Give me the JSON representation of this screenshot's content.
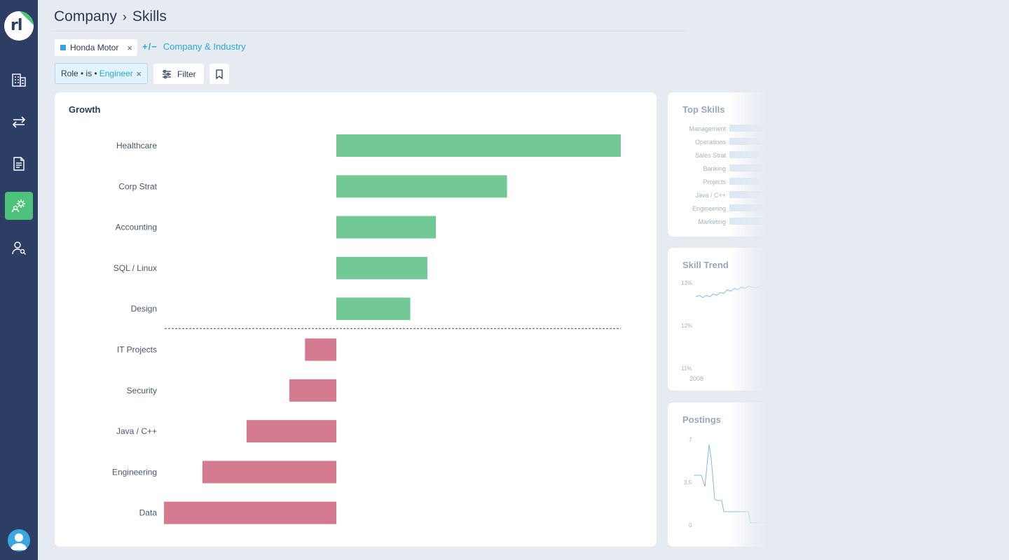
{
  "breadcrumb": {
    "company": "Company",
    "separator": "›",
    "page": "Skills"
  },
  "company_chip": {
    "label": "Honda Motor",
    "color": "#3aa0e6",
    "remove": "×"
  },
  "add_link": {
    "symbol": "+/−",
    "label": "Company & Industry"
  },
  "role_filter": {
    "prefix": "Role • is •",
    "value": "Engineer",
    "remove": "×"
  },
  "filter_button": {
    "label": "Filter"
  },
  "sidebar": {
    "logo_text": "rl",
    "items": [
      {
        "icon": "building-icon"
      },
      {
        "icon": "transfer-arrows-icon"
      },
      {
        "icon": "document-icon"
      },
      {
        "icon": "gear-people-icon",
        "active": true
      },
      {
        "icon": "user-search-icon"
      }
    ],
    "avatar_icon": "user-avatar-icon"
  },
  "growth_card": {
    "title": "Growth"
  },
  "chart_data": {
    "type": "bar",
    "orientation": "horizontal",
    "categories": [
      "Healthcare",
      "Corp Strat",
      "Accounting",
      "SQL / Linux",
      "Design",
      "IT Projects",
      "Security",
      "Java / C++",
      "Engineering",
      "Data"
    ],
    "values": [
      1.0,
      0.6,
      0.35,
      0.32,
      0.26,
      -0.11,
      -0.165,
      -0.315,
      -0.47,
      -0.605
    ],
    "colors": {
      "positive": "#72c995",
      "negative": "#d57b8f"
    },
    "xlim": [
      -0.605,
      1.0
    ],
    "divider": "dashed line between positive and negative groups",
    "grid": false,
    "legend": "none"
  },
  "top_skills": {
    "title": "Top Skills",
    "items": [
      "Management",
      "Operations",
      "Sales Strat",
      "Banking",
      "Projects",
      "Java / C++",
      "Engineering",
      "Marketing"
    ]
  },
  "skill_trend": {
    "title": "Skill Trend",
    "y_ticks": [
      "13%",
      "12%",
      "11%"
    ],
    "x_label": "2008"
  },
  "postings": {
    "title": "Postings",
    "y_ticks": [
      "7",
      "3.5",
      "0"
    ]
  }
}
